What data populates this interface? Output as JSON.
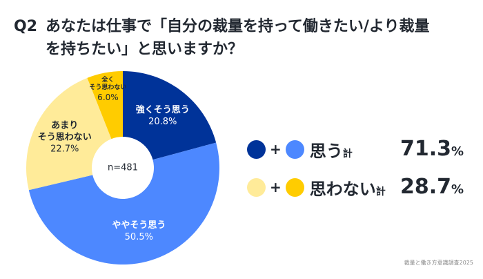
{
  "title": {
    "q": "Q2",
    "text": "あなたは仕事で「自分の裁量を持って働きたい/より裁量を持ちたい」と思いますか？"
  },
  "chart_data": {
    "type": "pie",
    "donut": true,
    "center_label": "n=481",
    "unit": "%",
    "slices": [
      {
        "label": "強くそう思う",
        "value": 20.8,
        "color": "#003399",
        "text_color": "#ffffff"
      },
      {
        "label": "ややそう思う",
        "value": 50.5,
        "color": "#4d88ff",
        "text_color": "#ffffff"
      },
      {
        "label": "あまり\nそう思わない",
        "value": 22.7,
        "color": "#ffeb99",
        "text_color": "#222831"
      },
      {
        "label": "全く\nそう思わない",
        "value": 6.0,
        "color": "#ffcc00",
        "text_color": "#222831"
      }
    ]
  },
  "summary": [
    {
      "label": "思う",
      "suffix": "計",
      "value": "71.3",
      "unit": "%",
      "colors": [
        "#003399",
        "#4d88ff"
      ]
    },
    {
      "label": "思わない",
      "suffix": "計",
      "value": "28.7",
      "unit": "%",
      "colors": [
        "#ffeb99",
        "#ffcc00"
      ]
    }
  ],
  "source": "裁量と働き方意識調査2025"
}
